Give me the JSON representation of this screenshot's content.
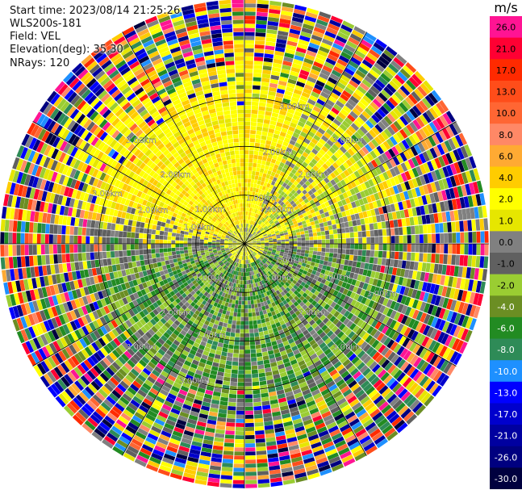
{
  "header": {
    "start_time": "Start time: 2023/08/14 21:25:26",
    "instrument": "WLS200s-181",
    "field": "Field: VEL",
    "elevation": "Elevation(deg): 35.30",
    "nrays": "NRays: 120"
  },
  "colorbar": {
    "unit": "m/s",
    "ticks": [
      "26.0",
      "21.0",
      "17.0",
      "13.0",
      "10.0",
      "8.0",
      "6.0",
      "4.0",
      "2.0",
      "1.0",
      "0.0",
      "-1.0",
      "-2.0",
      "-4.0",
      "-6.0",
      "-8.0",
      "-10.0",
      "-13.0",
      "-17.0",
      "-21.0",
      "-26.0",
      "-30.0"
    ],
    "colors": [
      "#ff1493",
      "#ff0033",
      "#ff2a00",
      "#ff4d1a",
      "#ff6633",
      "#ff8866",
      "#ffaa33",
      "#ffcc00",
      "#ffff00",
      "#e6e600",
      "#808080",
      "#606060",
      "#9acd32",
      "#6b8e23",
      "#228b22",
      "#2e8b57",
      "#1e90ff",
      "#0000ff",
      "#0000cd",
      "#0000a0",
      "#000080",
      "#00003f"
    ]
  },
  "chart_data": {
    "type": "heatmap",
    "projection": "polar PPI",
    "field": "VEL",
    "units": "m/s",
    "nrays": 120,
    "range_rings_km": [
      1.0,
      2.0,
      3.0
    ],
    "ring_labels": [
      "1.00km",
      "2.00km",
      "3.00km"
    ],
    "spoke_angles_deg": [
      0,
      30,
      60,
      90,
      120,
      150,
      180,
      210,
      240,
      270,
      300,
      330
    ],
    "vmin": -30.0,
    "vmax": 26.0,
    "pattern": {
      "north_half": "positive (yellow/orange, 2 to 8 m/s)",
      "south_half": "negative (green, -1 to -8 m/s)",
      "outer_ranges": "noisy, all colors"
    }
  }
}
